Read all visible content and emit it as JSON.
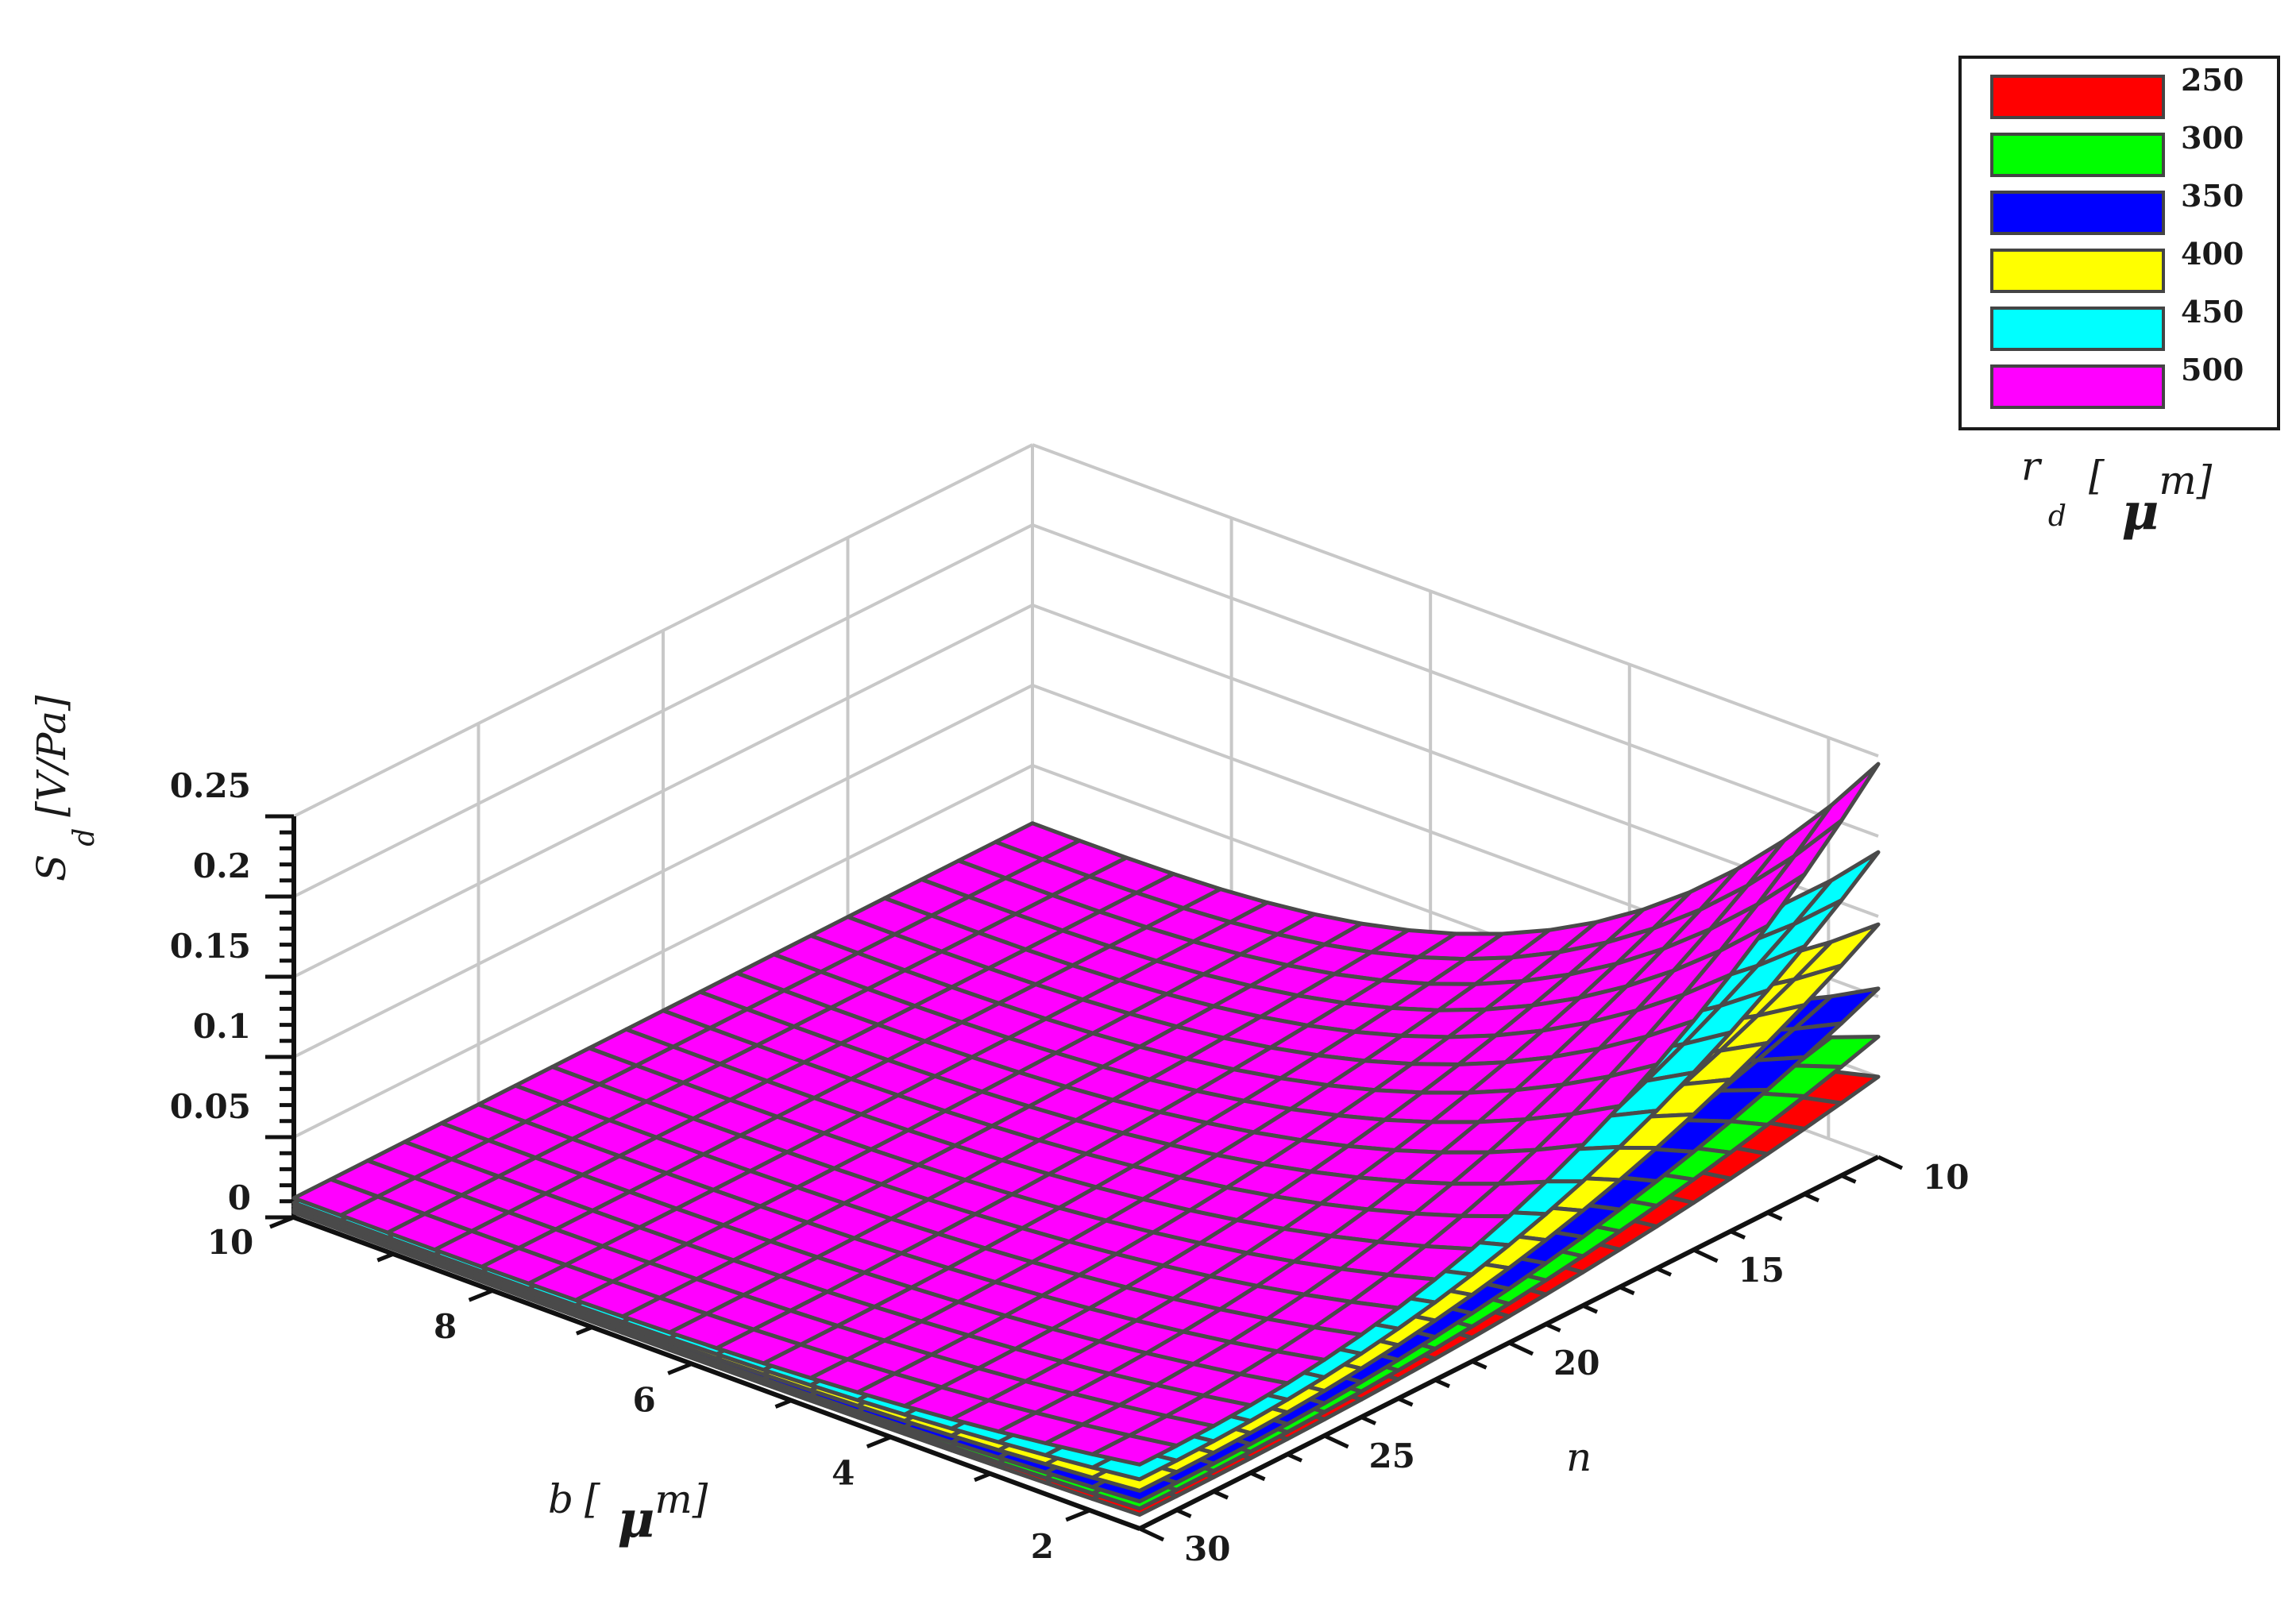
{
  "chart_data": {
    "type": "surface3d",
    "zlabel": {
      "main": "S",
      "sub": "d",
      "unit": "[V/Pa]"
    },
    "xlabel": {
      "main": "b",
      "bracket": "[",
      "mu": "μ",
      "unit": "m]"
    },
    "ylabel": {
      "main": "n"
    },
    "legend_title": {
      "main": "r",
      "sub": "d",
      "bracket": "[",
      "mu": "μ",
      "unit": "m]"
    },
    "zlim": [
      0,
      0.25
    ],
    "xlim": [
      1.5,
      10
    ],
    "ylim": [
      10,
      30
    ],
    "z_ticks": [
      "0",
      "0.05",
      "0.1",
      "0.15",
      "0.2",
      "0.25"
    ],
    "x_ticks": [
      "10",
      "8",
      "6",
      "4",
      "2"
    ],
    "y_ticks": [
      "10",
      "15",
      "20",
      "25",
      "30"
    ],
    "grid": true,
    "legend_position": "top-right",
    "series": [
      {
        "name": "250",
        "color": "#ff0000",
        "corner_values": {
          "b10_n10": 0.004,
          "b10_n30": 0.003,
          "b1.5_n30": 0.003,
          "b1.5_n10": 0.05
        }
      },
      {
        "name": "300",
        "color": "#00ff00",
        "corner_values": {
          "b10_n10": 0.005,
          "b10_n30": 0.004,
          "b1.5_n30": 0.004,
          "b1.5_n10": 0.075
        }
      },
      {
        "name": "350",
        "color": "#0000ff",
        "corner_values": {
          "b10_n10": 0.006,
          "b10_n30": 0.005,
          "b1.5_n30": 0.005,
          "b1.5_n10": 0.105
        }
      },
      {
        "name": "400",
        "color": "#ffff00",
        "corner_values": {
          "b10_n10": 0.008,
          "b10_n30": 0.007,
          "b1.5_n30": 0.007,
          "b1.5_n10": 0.145
        }
      },
      {
        "name": "450",
        "color": "#00ffff",
        "corner_values": {
          "b10_n10": 0.011,
          "b10_n30": 0.009,
          "b1.5_n30": 0.01,
          "b1.5_n10": 0.19
        }
      },
      {
        "name": "500",
        "color": "#ff00ff",
        "corner_values": {
          "b10_n10": 0.014,
          "b10_n30": 0.012,
          "b1.5_n30": 0.013,
          "b1.5_n10": 0.245
        }
      }
    ]
  }
}
